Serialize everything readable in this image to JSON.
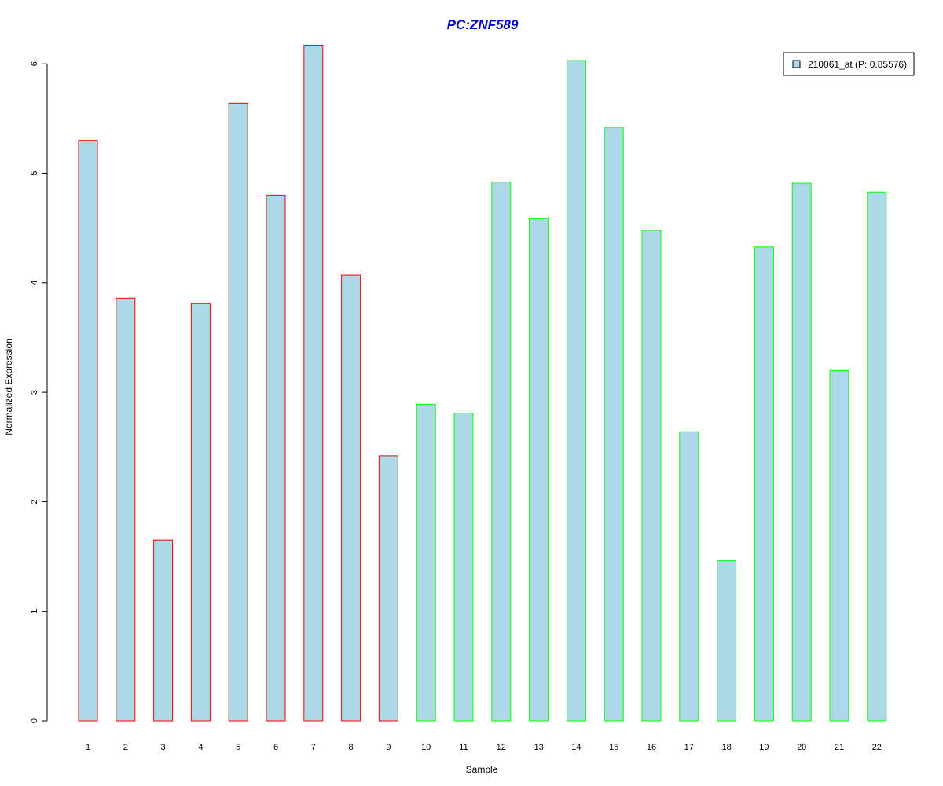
{
  "chart_data": {
    "type": "bar",
    "title": "PC:ZNF589",
    "xlabel": "Sample",
    "ylabel": "Normalized Expression",
    "categories": [
      "1",
      "2",
      "3",
      "4",
      "5",
      "6",
      "7",
      "8",
      "9",
      "10",
      "11",
      "12",
      "13",
      "14",
      "15",
      "16",
      "17",
      "18",
      "19",
      "20",
      "21",
      "22"
    ],
    "values": [
      5.3,
      3.86,
      1.65,
      3.81,
      5.64,
      4.8,
      6.17,
      4.07,
      2.42,
      2.89,
      2.81,
      4.92,
      4.59,
      6.03,
      5.42,
      4.48,
      2.64,
      1.46,
      4.33,
      4.91,
      3.2,
      4.83
    ],
    "groups": [
      1,
      1,
      1,
      1,
      1,
      1,
      1,
      1,
      1,
      2,
      2,
      2,
      2,
      2,
      2,
      2,
      2,
      2,
      2,
      2,
      2,
      2
    ],
    "ylim": [
      0,
      6
    ],
    "yticks": [
      "0",
      "1",
      "2",
      "3",
      "4",
      "5",
      "6"
    ],
    "grid": false,
    "legend": {
      "position": "top-right",
      "entries": [
        "210061_at (P: 0.85576)"
      ]
    },
    "colors": {
      "bar_fill": "#add8e6",
      "group1_border": "#ff0000",
      "group2_border": "#00ff00",
      "title": "#0000cd",
      "axis": "#000000"
    }
  }
}
